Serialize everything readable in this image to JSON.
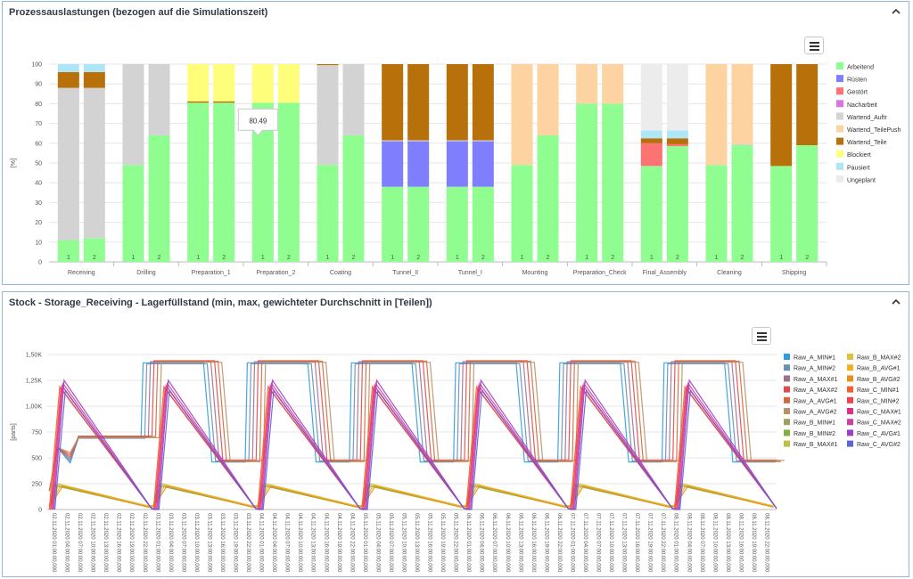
{
  "panel1": {
    "title": "Prozessauslastungen (bezogen auf die Simulationszeit)",
    "tooltip_value": "80.49",
    "chart_data": {
      "type": "bar",
      "stacked": true,
      "title": "Prozessauslastungen (bezogen auf die Simulationszeit)",
      "ylabel": "[%]",
      "ylim": [
        0,
        100
      ],
      "yticks": [
        "0",
        "10",
        "20",
        "30",
        "40",
        "50",
        "60",
        "70",
        "80",
        "90",
        "100"
      ],
      "categories": [
        "Receiving",
        "Drilling",
        "Preparation_1",
        "Preparation_2",
        "Coating",
        "Tunnel_II",
        "Tunnel_I",
        "Mounting",
        "Preparation_Check",
        "Final_Assembly",
        "Cleaning",
        "Shipping"
      ],
      "bar_labels": [
        "1",
        "2"
      ],
      "legend": [
        {
          "name": "Arbeitend",
          "color": "#90fd90"
        },
        {
          "name": "Rüsten",
          "color": "#7f7ffe"
        },
        {
          "name": "Gestört",
          "color": "#fd7272"
        },
        {
          "name": "Nacharbeit",
          "color": "#de72de"
        },
        {
          "name": "Wartend_Auftr",
          "color": "#d3d3d3"
        },
        {
          "name": "Wartend_TeilePush",
          "color": "#fdd3a2"
        },
        {
          "name": "Wartend_Teile",
          "color": "#b8700a"
        },
        {
          "name": "Blockiert",
          "color": "#fefe7a"
        },
        {
          "name": "Pausiert",
          "color": "#aee6f8"
        },
        {
          "name": "Ungeplant",
          "color": "#ececec"
        }
      ],
      "bars": [
        [
          [
            [
              "Arbeitend",
              11
            ],
            [
              "Wartend_Auftr",
              77
            ],
            [
              "Wartend_Teile",
              8
            ],
            [
              "Pausiert",
              4
            ]
          ],
          [
            [
              "Arbeitend",
              12
            ],
            [
              "Wartend_Auftr",
              76
            ],
            [
              "Wartend_Teile",
              8
            ],
            [
              "Pausiert",
              4
            ]
          ]
        ],
        [
          [
            [
              "Arbeitend",
              49
            ],
            [
              "Wartend_Auftr",
              51
            ]
          ],
          [
            [
              "Arbeitend",
              64
            ],
            [
              "Wartend_Auftr",
              36
            ]
          ]
        ],
        [
          [
            [
              "Arbeitend",
              80.5
            ],
            [
              "Wartend_Teile",
              0.7
            ],
            [
              "Blockiert",
              18.8
            ]
          ],
          [
            [
              "Arbeitend",
              80.5
            ],
            [
              "Wartend_Teile",
              0.7
            ],
            [
              "Blockiert",
              18.8
            ]
          ]
        ],
        [
          [
            [
              "Arbeitend",
              80.49
            ],
            [
              "Blockiert",
              19.51
            ]
          ],
          [
            [
              "Arbeitend",
              80.49
            ],
            [
              "Blockiert",
              19.51
            ]
          ]
        ],
        [
          [
            [
              "Arbeitend",
              49
            ],
            [
              "Wartend_Auftr",
              50.5
            ],
            [
              "Wartend_Teile",
              0.5
            ]
          ],
          [
            [
              "Arbeitend",
              64
            ],
            [
              "Wartend_Auftr",
              36
            ]
          ]
        ],
        [
          [
            [
              "Arbeitend",
              38
            ],
            [
              "Rüsten",
              23
            ],
            [
              "Wartend_Auftr",
              0.5
            ],
            [
              "Wartend_Teile",
              38.5
            ]
          ],
          [
            [
              "Arbeitend",
              38
            ],
            [
              "Rüsten",
              23
            ],
            [
              "Wartend_Auftr",
              0.5
            ],
            [
              "Wartend_Teile",
              38.5
            ]
          ]
        ],
        [
          [
            [
              "Arbeitend",
              38
            ],
            [
              "Rüsten",
              23
            ],
            [
              "Wartend_Auftr",
              0.5
            ],
            [
              "Wartend_Teile",
              38.5
            ]
          ],
          [
            [
              "Arbeitend",
              38
            ],
            [
              "Rüsten",
              23
            ],
            [
              "Wartend_Auftr",
              0.5
            ],
            [
              "Wartend_Teile",
              38.5
            ]
          ]
        ],
        [
          [
            [
              "Arbeitend",
              49
            ],
            [
              "Wartend_TeilePush",
              51
            ]
          ],
          [
            [
              "Arbeitend",
              64
            ],
            [
              "Wartend_TeilePush",
              36
            ]
          ]
        ],
        [
          [
            [
              "Arbeitend",
              80
            ],
            [
              "Wartend_TeilePush",
              20
            ]
          ],
          [
            [
              "Arbeitend",
              80
            ],
            [
              "Wartend_TeilePush",
              20
            ]
          ]
        ],
        [
          [
            [
              "Arbeitend",
              48.5
            ],
            [
              "Gestört",
              11.5
            ],
            [
              "Wartend_Teile",
              2.5
            ],
            [
              "Pausiert",
              4
            ],
            [
              "Ungeplant",
              33.5
            ]
          ],
          [
            [
              "Arbeitend",
              58.5
            ],
            [
              "Gestört",
              1
            ],
            [
              "Wartend_Teile",
              3
            ],
            [
              "Pausiert",
              4
            ],
            [
              "Ungeplant",
              33.5
            ]
          ]
        ],
        [
          [
            [
              "Arbeitend",
              49
            ],
            [
              "Wartend_TeilePush",
              51
            ]
          ],
          [
            [
              "Arbeitend",
              59
            ],
            [
              "Wartend_Auftr",
              0.6
            ],
            [
              "Wartend_TeilePush",
              40.4
            ]
          ]
        ],
        [
          [
            [
              "Arbeitend",
              48.5
            ],
            [
              "Wartend_Teile",
              51.5
            ]
          ],
          [
            [
              "Arbeitend",
              59
            ],
            [
              "Wartend_Teile",
              41
            ]
          ]
        ]
      ]
    }
  },
  "panel2": {
    "title": "Stock - Storage_Receiving - Lagerfüllstand (min, max, gewichteter Durchschnitt in [Teilen])",
    "chart_data": {
      "type": "line",
      "title": "Stock - Storage_Receiving - Lagerfüllstand (min, max, gewichteter Durchschnitt in [Teilen])",
      "ylabel": "[parts]",
      "ylim": [
        0,
        1500
      ],
      "yticks": [
        "0",
        "250",
        "500",
        "750",
        "1,00K",
        "1,25K",
        "1,50K"
      ],
      "x_days": [
        "02.11.2020",
        "03.11.2020",
        "04.11.2020",
        "05.11.2020",
        "06.11.2020",
        "07.11.2020",
        "08.11.2020"
      ],
      "x_times": [
        "01:00:00,000",
        "04:00:00,000",
        "07:00:00,000",
        "10:00:00,000",
        "13:00:00,000",
        "16:00:00,000",
        "19:00:00,000",
        "22:00:00,000"
      ],
      "series": [
        {
          "name": "Raw_A_MIN#1",
          "color": "#2e9ee0",
          "shape": "high",
          "v": [
            700,
            1420,
            460,
            1440,
            310
          ]
        },
        {
          "name": "Raw_A_MIN#2",
          "color": "#6b8fb0",
          "shape": "high",
          "v": [
            690,
            1410,
            470,
            1430,
            320
          ]
        },
        {
          "name": "Raw_A_MAX#1",
          "color": "#a07090",
          "shape": "high",
          "v": [
            700,
            1430,
            470,
            1440,
            330
          ]
        },
        {
          "name": "Raw_A_MAX#2",
          "color": "#e2484b",
          "shape": "high",
          "v": [
            710,
            1440,
            480,
            1450,
            340
          ]
        },
        {
          "name": "Raw_A_AVG#1",
          "color": "#d06a3a",
          "shape": "high",
          "v": [
            705,
            1435,
            465,
            1445,
            325
          ]
        },
        {
          "name": "Raw_A_AVG#2",
          "color": "#b8906a",
          "shape": "high",
          "v": [
            695,
            1425,
            475,
            1435,
            335
          ]
        },
        {
          "name": "Raw_B_MIN#1",
          "color": "#a0a060",
          "shape": "low",
          "v": [
            240,
            30
          ]
        },
        {
          "name": "Raw_B_MIN#2",
          "color": "#80b040",
          "shape": "low",
          "v": [
            230,
            25
          ]
        },
        {
          "name": "Raw_B_MAX#1",
          "color": "#c0c040",
          "shape": "low",
          "v": [
            250,
            35
          ]
        },
        {
          "name": "Raw_B_MAX#2",
          "color": "#e0c040",
          "shape": "low",
          "v": [
            245,
            30
          ]
        },
        {
          "name": "Raw_B_AVG#1",
          "color": "#f0b020",
          "shape": "low",
          "v": [
            235,
            28
          ]
        },
        {
          "name": "Raw_B_AVG#2",
          "color": "#e8901a",
          "shape": "low",
          "v": [
            225,
            22
          ]
        },
        {
          "name": "Raw_C_MIN#1",
          "color": "#f06030",
          "shape": "saw",
          "v": [
            1190,
            0
          ]
        },
        {
          "name": "Raw_C_MIN#2",
          "color": "#f04050",
          "shape": "saw",
          "v": [
            1170,
            0
          ]
        },
        {
          "name": "Raw_C_MAX#1",
          "color": "#e03080",
          "shape": "saw",
          "v": [
            1200,
            0
          ]
        },
        {
          "name": "Raw_C_MAX#2",
          "color": "#d040a0",
          "shape": "saw",
          "v": [
            1220,
            0
          ]
        },
        {
          "name": "Raw_C_AVG#1",
          "color": "#a040c0",
          "shape": "saw",
          "v": [
            1250,
            0
          ]
        },
        {
          "name": "Raw_C_AVG#2",
          "color": "#6060d8",
          "shape": "saw",
          "v": [
            1150,
            0
          ]
        }
      ]
    }
  }
}
